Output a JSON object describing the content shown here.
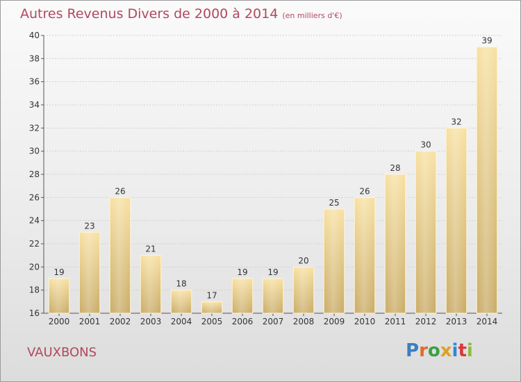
{
  "title": "Autres Revenus Divers de 2000 à 2014",
  "subtitle": "(en milliers d'€)",
  "commune": "VAUXBONS",
  "logo": {
    "letters": [
      "P",
      "r",
      "o",
      "x",
      "i",
      "t",
      "i"
    ],
    "colors": [
      "#3a7fc0",
      "#e26a2c",
      "#3aa043",
      "#e0a020",
      "#2e88d6",
      "#d9373c",
      "#8bbd3a"
    ]
  },
  "colors": {
    "accent": "#b0485f",
    "bar_top": "#f7e0a1",
    "bar_bottom": "#c9ab66"
  },
  "chart_data": {
    "type": "bar",
    "categories": [
      "2000",
      "2001",
      "2002",
      "2003",
      "2004",
      "2005",
      "2006",
      "2007",
      "2008",
      "2009",
      "2010",
      "2011",
      "2012",
      "2013",
      "2014"
    ],
    "values": [
      19,
      23,
      26,
      21,
      18,
      17,
      19,
      19,
      20,
      25,
      26,
      28,
      30,
      32,
      39
    ],
    "title": "Autres Revenus Divers de 2000 à 2014",
    "subtitle": "(en milliers d'€)",
    "ylim": [
      16,
      40
    ],
    "yticks": [
      16,
      18,
      20,
      22,
      24,
      26,
      28,
      30,
      32,
      34,
      36,
      38,
      40
    ],
    "grid": true,
    "data_labels": true
  }
}
